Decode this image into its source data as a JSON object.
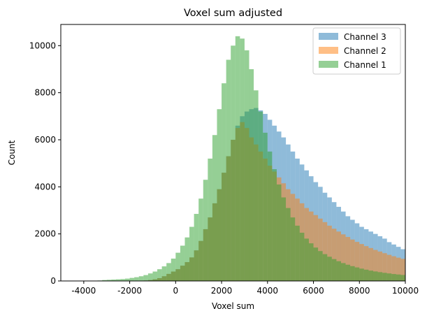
{
  "chart_data": {
    "type": "bar",
    "title": "Voxel sum adjusted",
    "xlabel": "Voxel sum",
    "ylabel": "Count",
    "xlim": [
      -5000,
      10000
    ],
    "ylim": [
      0,
      10900
    ],
    "xticks": [
      -4000,
      -2000,
      0,
      2000,
      4000,
      6000,
      8000,
      10000
    ],
    "yticks": [
      0,
      2000,
      4000,
      6000,
      8000,
      10000
    ],
    "bin_width": 200,
    "bins_start": -5000,
    "legend_position": "top-right",
    "series": [
      {
        "name": "Channel 3",
        "color": "#1f77b4",
        "values": [
          0,
          0,
          0,
          0,
          0,
          0,
          0,
          0,
          0,
          0,
          0,
          0,
          0,
          0,
          0,
          0,
          5,
          10,
          20,
          40,
          70,
          120,
          200,
          300,
          400,
          500,
          650,
          800,
          1000,
          1300,
          1700,
          2200,
          2700,
          3300,
          3900,
          4600,
          5300,
          6000,
          6600,
          7000,
          7200,
          7300,
          7350,
          7250,
          7100,
          6850,
          6600,
          6350,
          6100,
          5800,
          5500,
          5200,
          4950,
          4700,
          4450,
          4200,
          4000,
          3750,
          3550,
          3350,
          3150,
          2950,
          2750,
          2600,
          2450,
          2300,
          2200,
          2100,
          2000,
          1900,
          1800,
          1650,
          1550,
          1450,
          1350,
          1250,
          1150,
          1080,
          1000,
          940,
          880,
          820,
          760,
          710,
          660,
          610,
          560,
          520,
          480,
          450,
          420,
          390,
          360,
          330,
          300,
          280,
          260,
          240,
          220,
          200,
          180,
          170,
          160,
          150,
          140,
          130,
          120,
          110,
          100,
          90,
          80,
          75,
          70,
          65,
          60,
          55,
          50
        ]
      },
      {
        "name": "Channel 2",
        "color": "#ff7f0e",
        "values": [
          0,
          0,
          0,
          0,
          0,
          0,
          0,
          0,
          0,
          0,
          0,
          0,
          0,
          0,
          0,
          0,
          5,
          10,
          20,
          40,
          70,
          120,
          200,
          300,
          400,
          500,
          650,
          800,
          1000,
          1300,
          1700,
          2200,
          2700,
          3300,
          3900,
          4600,
          5300,
          6000,
          6500,
          6750,
          6500,
          6100,
          5800,
          5500,
          5200,
          4900,
          4650,
          4400,
          4150,
          3900,
          3700,
          3500,
          3300,
          3100,
          2950,
          2800,
          2650,
          2500,
          2350,
          2220,
          2100,
          1980,
          1870,
          1760,
          1660,
          1570,
          1480,
          1400,
          1320,
          1250,
          1180,
          1110,
          1050,
          990,
          940,
          890,
          840,
          800,
          760,
          720,
          680,
          650,
          620,
          590,
          560,
          530,
          500,
          480,
          460,
          440,
          420,
          400,
          380,
          360,
          340,
          330,
          320,
          310,
          300,
          290,
          280,
          270,
          260,
          250,
          240,
          230,
          220,
          210,
          200,
          195,
          190,
          185,
          180,
          175,
          170
        ]
      },
      {
        "name": "Channel 1",
        "color": "#2ca02c",
        "values": [
          0,
          0,
          0,
          0,
          0,
          0,
          0,
          10,
          20,
          40,
          50,
          60,
          70,
          80,
          100,
          130,
          160,
          200,
          250,
          320,
          400,
          500,
          620,
          760,
          950,
          1200,
          1500,
          1850,
          2300,
          2850,
          3500,
          4300,
          5200,
          6200,
          7300,
          8400,
          9400,
          10000,
          10400,
          10300,
          9800,
          9000,
          8100,
          7200,
          6300,
          5500,
          4750,
          4100,
          3550,
          3100,
          2700,
          2350,
          2050,
          1800,
          1600,
          1420,
          1270,
          1140,
          1030,
          930,
          840,
          760,
          690,
          630,
          575,
          525,
          480,
          440,
          405,
          375,
          345,
          320,
          295,
          275,
          255,
          235,
          218,
          202,
          188,
          175,
          163,
          152,
          142,
          133,
          124,
          116,
          108,
          101,
          95,
          89,
          83,
          78,
          73,
          68,
          64,
          60,
          56,
          52,
          49,
          46,
          43,
          40,
          38,
          36,
          34,
          32,
          30,
          28,
          26,
          24,
          22,
          20,
          18,
          16,
          14,
          12,
          10
        ]
      }
    ]
  }
}
